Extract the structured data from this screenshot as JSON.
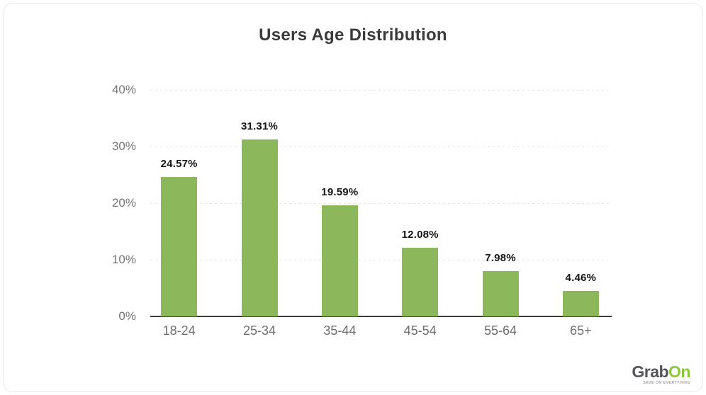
{
  "chart_data": {
    "type": "bar",
    "title": "Users Age Distribution",
    "categories": [
      "18-24",
      "25-34",
      "35-44",
      "45-54",
      "55-64",
      "65+"
    ],
    "values": [
      24.57,
      31.31,
      19.59,
      12.08,
      7.98,
      4.46
    ],
    "data_labels": [
      "24.57%",
      "31.31%",
      "19.59%",
      "12.08%",
      "7.98%",
      "4.46%"
    ],
    "y_ticks": [
      {
        "label": "0%",
        "value": 0
      },
      {
        "label": "10%",
        "value": 10
      },
      {
        "label": "20%",
        "value": 20
      },
      {
        "label": "30%",
        "value": 30
      },
      {
        "label": "40%",
        "value": 40
      }
    ],
    "ylim": [
      0,
      40
    ],
    "xlabel": "",
    "ylabel": "",
    "legend": "none",
    "grid": "horizontal-dotted",
    "colors": {
      "bar": "#8CB75A",
      "data_label": "#161616",
      "axis_line": "#3d3d3d",
      "grid_line": "#e3e3e3",
      "tick_text": "#757575",
      "title_text": "#3b3b3b"
    }
  },
  "logo": {
    "brand_primary": "Grab",
    "brand_accent": "On",
    "tagline": "SAVE ON EVERYTHING",
    "primary_color": "#54555A",
    "accent_color": "#8DC63F"
  }
}
